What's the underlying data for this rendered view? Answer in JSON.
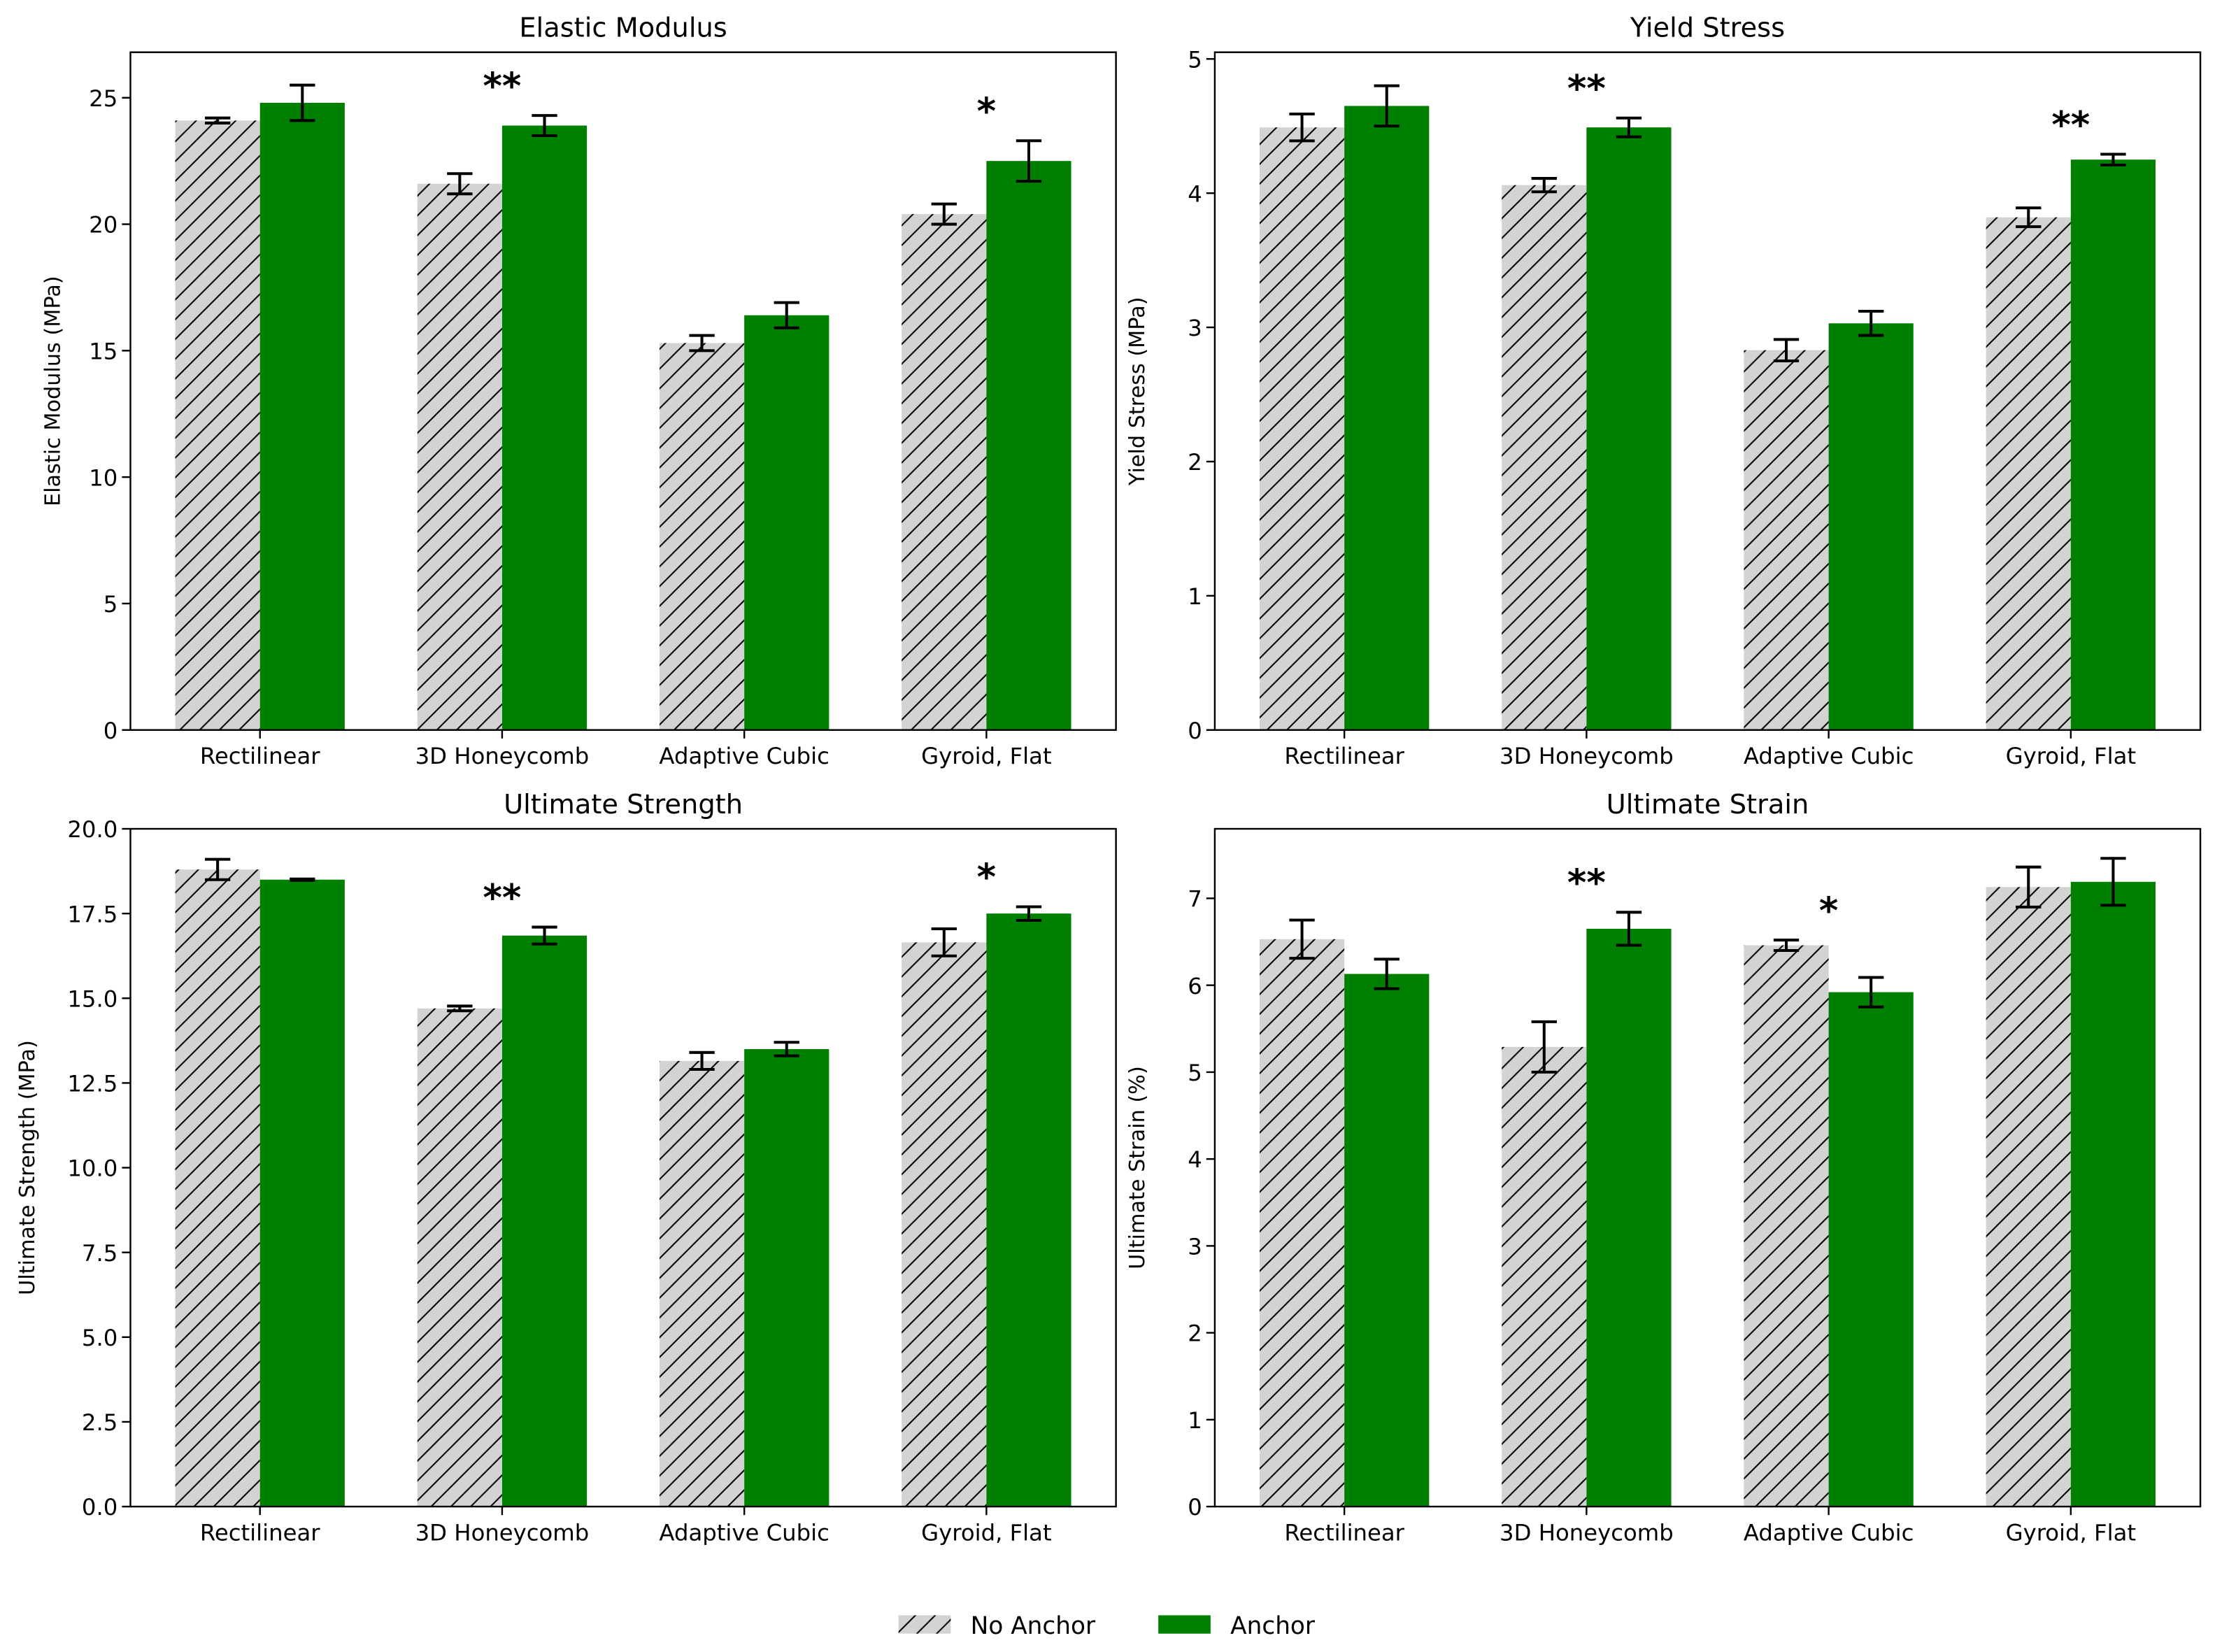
{
  "chart_data": [
    {
      "type": "bar",
      "title": "Elastic Modulus",
      "ylabel": "Elastic Modulus (MPa)",
      "categories": [
        "Rectilinear",
        "3D Honeycomb",
        "Adaptive Cubic",
        "Gyroid, Flat"
      ],
      "ylim": [
        0,
        26.8
      ],
      "yticks": [
        "0",
        "5",
        "10",
        "15",
        "20",
        "25"
      ],
      "series": [
        {
          "name": "No Anchor",
          "values": [
            24.1,
            21.6,
            15.3,
            20.4
          ],
          "errors": [
            0.1,
            0.4,
            0.3,
            0.4
          ]
        },
        {
          "name": "Anchor",
          "values": [
            24.8,
            23.9,
            16.4,
            22.5
          ],
          "errors": [
            0.7,
            0.4,
            0.5,
            0.8
          ]
        }
      ],
      "annotations": [
        "",
        "**",
        "",
        "*"
      ]
    },
    {
      "type": "bar",
      "title": "Yield Stress",
      "ylabel": "Yield Stress (MPa)",
      "categories": [
        "Rectilinear",
        "3D Honeycomb",
        "Adaptive Cubic",
        "Gyroid, Flat"
      ],
      "ylim": [
        0,
        5.05
      ],
      "yticks": [
        "0",
        "1",
        "2",
        "3",
        "4",
        "5"
      ],
      "series": [
        {
          "name": "No Anchor",
          "values": [
            4.49,
            4.06,
            2.83,
            3.82
          ],
          "errors": [
            0.1,
            0.05,
            0.08,
            0.07
          ]
        },
        {
          "name": "Anchor",
          "values": [
            4.65,
            4.49,
            3.03,
            4.25
          ],
          "errors": [
            0.15,
            0.07,
            0.09,
            0.04
          ]
        }
      ],
      "annotations": [
        "",
        "**",
        "",
        "**"
      ]
    },
    {
      "type": "bar",
      "title": "Ultimate Strength",
      "ylabel": "Ultimate Strength (MPa)",
      "categories": [
        "Rectilinear",
        "3D Honeycomb",
        "Adaptive Cubic",
        "Gyroid, Flat"
      ],
      "ylim": [
        0,
        20.0
      ],
      "yticks": [
        "0.0",
        "2.5",
        "5.0",
        "7.5",
        "10.0",
        "12.5",
        "15.0",
        "17.5",
        "20.0"
      ],
      "series": [
        {
          "name": "No Anchor",
          "values": [
            18.8,
            14.7,
            13.15,
            16.65
          ],
          "errors": [
            0.3,
            0.07,
            0.25,
            0.4
          ]
        },
        {
          "name": "Anchor",
          "values": [
            18.5,
            16.85,
            13.5,
            17.5
          ],
          "errors": [
            0.02,
            0.25,
            0.2,
            0.2
          ]
        }
      ],
      "annotations": [
        "",
        "**",
        "",
        "*"
      ]
    },
    {
      "type": "bar",
      "title": "Ultimate Strain",
      "ylabel": "Ultimate Strain (%)",
      "categories": [
        "Rectilinear",
        "3D Honeycomb",
        "Adaptive Cubic",
        "Gyroid, Flat"
      ],
      "ylim": [
        0,
        7.8
      ],
      "yticks": [
        "0",
        "1",
        "2",
        "3",
        "4",
        "5",
        "6",
        "7"
      ],
      "series": [
        {
          "name": "No Anchor",
          "values": [
            6.53,
            5.29,
            6.46,
            7.13
          ],
          "errors": [
            0.22,
            0.29,
            0.06,
            0.23
          ]
        },
        {
          "name": "Anchor",
          "values": [
            6.13,
            6.65,
            5.92,
            7.19
          ],
          "errors": [
            0.17,
            0.19,
            0.17,
            0.27
          ]
        }
      ],
      "annotations": [
        "",
        "**",
        "*",
        ""
      ]
    }
  ],
  "legend": {
    "placement": "bottom-center",
    "items": [
      {
        "label": "No Anchor",
        "fill": "#d3d3d3",
        "hatch": "diagonal"
      },
      {
        "label": "Anchor",
        "fill": "#008000"
      }
    ]
  },
  "colors": {
    "no_anchor": "#d3d3d3",
    "anchor": "#008000",
    "error_bar": "#000000"
  }
}
